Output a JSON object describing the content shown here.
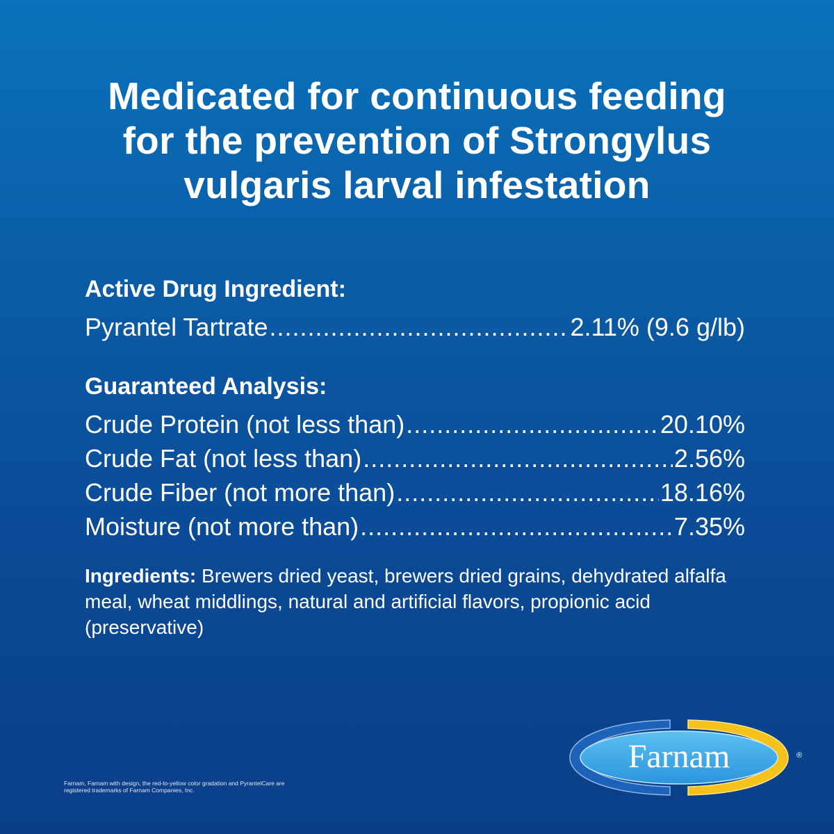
{
  "headline": [
    "Medicated for continuous feeding",
    "for the prevention of Strongylus",
    "vulgaris larval infestation"
  ],
  "active": {
    "title": "Active Drug Ingredient:",
    "rows": [
      {
        "label": "Pyrantel Tartrate ",
        "value": "2.11% (9.6 g/lb)"
      }
    ]
  },
  "analysis": {
    "title": "Guaranteed Analysis:",
    "rows": [
      {
        "label": "Crude Protein (not less than)",
        "value": "20.10%"
      },
      {
        "label": "Crude Fat (not less than)",
        "value": "2.56%"
      },
      {
        "label": "Crude Fiber (not more than) ",
        "value": "18.16%"
      },
      {
        "label": "Moisture (not more than)",
        "value": "7.35%"
      }
    ]
  },
  "ingredients": {
    "label": "Ingredients:",
    "text": " Brewers dried yeast, brewers dried grains, dehydrated alfalfa meal, wheat middlings, natural and artificial flavors, propionic acid (preservative)"
  },
  "fine_print": "Farnam, Farnam with design, the red-to-yellow color gradation and PyrantelCare are registered trademarks of Farnam Companies, Inc.",
  "logo": {
    "text": "Farnam",
    "registered": "®",
    "colors": {
      "blue": "#1c62b8",
      "yellow": "#f4c21a",
      "inner": "#3ea9e6"
    }
  }
}
